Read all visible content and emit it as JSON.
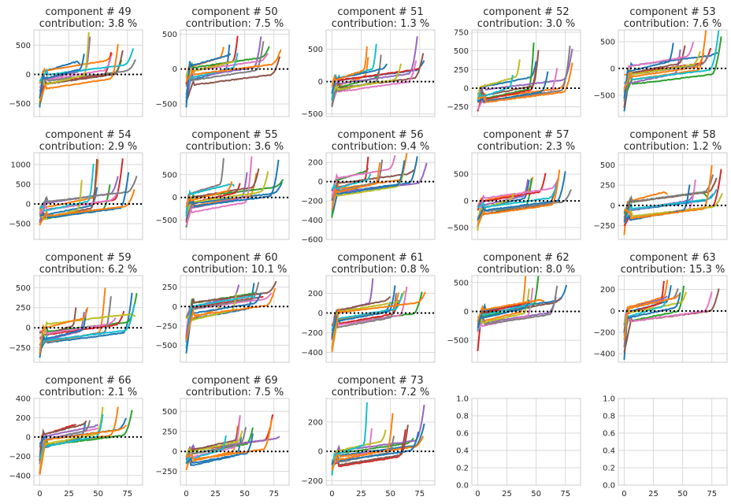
{
  "figure": {
    "background": "#ffffff",
    "grid": true
  },
  "palette": [
    "#1f77b4",
    "#ff7f0e",
    "#2ca02c",
    "#d62728",
    "#9467bd",
    "#8c564b",
    "#e377c2",
    "#7f7f7f",
    "#bcbd22",
    "#17becf"
  ],
  "chart_data": [
    {
      "type": "line",
      "title": "component # 49",
      "subtitle": "contribution: 3.8 %",
      "ylim": [
        -720,
        760
      ],
      "yticks": [
        -500,
        0,
        500
      ],
      "xlim": [
        -5,
        88
      ],
      "xticks": [
        0,
        25,
        50,
        75
      ],
      "series_count": 12,
      "range_min": -650,
      "range_max": 700,
      "reference_line": 0
    },
    {
      "type": "line",
      "title": "component # 50",
      "subtitle": "contribution: 7.5 %",
      "ylim": [
        -680,
        560
      ],
      "yticks": [
        -500,
        0,
        500
      ],
      "xlim": [
        -5,
        88
      ],
      "xticks": [
        0,
        25,
        50,
        75
      ],
      "series_count": 12,
      "range_min": -620,
      "range_max": 540,
      "reference_line": 0
    },
    {
      "type": "line",
      "title": "component # 51",
      "subtitle": "contribution: 1.3 %",
      "ylim": [
        -540,
        800
      ],
      "yticks": [
        -500,
        0,
        500
      ],
      "xlim": [
        -5,
        88
      ],
      "xticks": [
        0,
        25,
        50,
        75
      ],
      "series_count": 12,
      "range_min": -480,
      "range_max": 760,
      "reference_line": 0
    },
    {
      "type": "line",
      "title": "component # 52",
      "subtitle": "contribution: 3.0 %",
      "ylim": [
        -380,
        780
      ],
      "yticks": [
        -250,
        0,
        250,
        500,
        750
      ],
      "xlim": [
        -5,
        88
      ],
      "xticks": [
        0,
        25,
        50,
        75
      ],
      "series_count": 12,
      "range_min": -340,
      "range_max": 730,
      "reference_line": 0
    },
    {
      "type": "line",
      "title": "component # 53",
      "subtitle": "contribution: 7.6 %",
      "ylim": [
        -900,
        720
      ],
      "yticks": [
        -500,
        0,
        500
      ],
      "xlim": [
        -5,
        88
      ],
      "xticks": [
        0,
        25,
        50,
        75
      ],
      "series_count": 12,
      "range_min": -830,
      "range_max": 650,
      "reference_line": 0
    },
    {
      "type": "line",
      "title": "component # 54",
      "subtitle": "contribution: 2.9 %",
      "ylim": [
        -900,
        1300
      ],
      "yticks": [
        -500,
        0,
        500,
        1000
      ],
      "xlim": [
        -5,
        88
      ],
      "xticks": [
        0,
        25,
        50,
        75
      ],
      "series_count": 12,
      "range_min": -830,
      "range_max": 1150,
      "reference_line": 0
    },
    {
      "type": "line",
      "title": "component # 55",
      "subtitle": "contribution: 3.6 %",
      "ylim": [
        -920,
        980
      ],
      "yticks": [
        -500,
        0,
        500
      ],
      "xlim": [
        -5,
        88
      ],
      "xticks": [
        0,
        25,
        50,
        75
      ],
      "series_count": 12,
      "range_min": -870,
      "range_max": 880,
      "reference_line": 0
    },
    {
      "type": "line",
      "title": "component # 56",
      "subtitle": "contribution: 9.4 %",
      "ylim": [
        -600,
        300
      ],
      "yticks": [
        -600,
        -400,
        -200,
        0,
        200
      ],
      "xlim": [
        -5,
        88
      ],
      "xticks": [
        0,
        25,
        50,
        75
      ],
      "series_count": 12,
      "range_min": -470,
      "range_max": 280,
      "reference_line": 0
    },
    {
      "type": "line",
      "title": "component # 57",
      "subtitle": "contribution: 2.3 %",
      "ylim": [
        -720,
        900
      ],
      "yticks": [
        -500,
        0,
        500
      ],
      "xlim": [
        -5,
        88
      ],
      "xticks": [
        0,
        25,
        50,
        75
      ],
      "series_count": 12,
      "range_min": -700,
      "range_max": 720,
      "reference_line": 0
    },
    {
      "type": "line",
      "title": "component # 58",
      "subtitle": "contribution: 1.2 %",
      "ylim": [
        -420,
        650
      ],
      "yticks": [
        -250,
        0,
        250,
        500
      ],
      "xlim": [
        -5,
        88
      ],
      "xticks": [
        0,
        25,
        50,
        75
      ],
      "series_count": 12,
      "range_min": -400,
      "range_max": 560,
      "reference_line": 0
    },
    {
      "type": "line",
      "title": "component # 59",
      "subtitle": "contribution: 6.2 %",
      "ylim": [
        -430,
        650
      ],
      "yticks": [
        -250,
        0,
        250,
        500
      ],
      "xlim": [
        -5,
        88
      ],
      "xticks": [
        0,
        25,
        50,
        75
      ],
      "series_count": 12,
      "range_min": -400,
      "range_max": 570,
      "reference_line": 0
    },
    {
      "type": "line",
      "title": "component # 60",
      "subtitle": "contribution: 10.1 %",
      "ylim": [
        -720,
        400
      ],
      "yticks": [
        -500,
        -250,
        0,
        250
      ],
      "xlim": [
        -5,
        88
      ],
      "xticks": [
        0,
        25,
        50,
        75
      ],
      "series_count": 12,
      "range_min": -680,
      "range_max": 360,
      "reference_line": 0
    },
    {
      "type": "line",
      "title": "component # 61",
      "subtitle": "contribution: 0.8 %",
      "ylim": [
        -500,
        380
      ],
      "yticks": [
        -400,
        -200,
        0,
        200
      ],
      "xlim": [
        -5,
        88
      ],
      "xticks": [
        0,
        25,
        50,
        75
      ],
      "series_count": 12,
      "range_min": -470,
      "range_max": 330,
      "reference_line": 0
    },
    {
      "type": "line",
      "title": "component # 62",
      "subtitle": "contribution: 8.0 %",
      "ylim": [
        -880,
        620
      ],
      "yticks": [
        -500,
        0,
        500
      ],
      "xlim": [
        -5,
        88
      ],
      "xticks": [
        0,
        25,
        50,
        75
      ],
      "series_count": 12,
      "range_min": -800,
      "range_max": 560,
      "reference_line": 0
    },
    {
      "type": "line",
      "title": "component # 63",
      "subtitle": "contribution: 15.3 %",
      "ylim": [
        -480,
        330
      ],
      "yticks": [
        -400,
        -200,
        0,
        200
      ],
      "xlim": [
        -5,
        88
      ],
      "xticks": [
        0,
        25,
        50,
        75
      ],
      "series_count": 12,
      "range_min": -460,
      "range_max": 300,
      "reference_line": 0
    },
    {
      "type": "line",
      "title": "component # 66",
      "subtitle": "contribution: 2.1 %",
      "ylim": [
        -500,
        400
      ],
      "yticks": [
        -400,
        -200,
        0,
        200,
        400
      ],
      "xlim": [
        -5,
        88
      ],
      "xticks": [
        0,
        25,
        50,
        75
      ],
      "series_count": 12,
      "range_min": -470,
      "range_max": 360,
      "reference_line": 0
    },
    {
      "type": "line",
      "title": "component # 69",
      "subtitle": "contribution: 7.5 %",
      "ylim": [
        -420,
        660
      ],
      "yticks": [
        -250,
        0,
        250,
        500
      ],
      "xlim": [
        -5,
        88
      ],
      "xticks": [
        0,
        25,
        50,
        75
      ],
      "series_count": 12,
      "range_min": -380,
      "range_max": 620,
      "reference_line": 0
    },
    {
      "type": "line",
      "title": "component # 73",
      "subtitle": "contribution: 7.2 %",
      "ylim": [
        -230,
        360
      ],
      "yticks": [
        -200,
        0,
        200
      ],
      "xlim": [
        -5,
        88
      ],
      "xticks": [
        0,
        25,
        50,
        75
      ],
      "series_count": 12,
      "range_min": -210,
      "range_max": 330,
      "reference_line": 0
    },
    {
      "type": "line",
      "title": "",
      "subtitle": "",
      "empty": true,
      "ylim": [
        0,
        1
      ],
      "yticks": [
        0.0,
        0.2,
        0.4,
        0.6,
        0.8,
        1.0
      ],
      "xlim": [
        -5,
        88
      ],
      "xticks": [
        0,
        25,
        50,
        75
      ],
      "series_count": 0
    },
    {
      "type": "line",
      "title": "",
      "subtitle": "",
      "empty": true,
      "ylim": [
        0,
        1
      ],
      "yticks": [
        0.0,
        0.2,
        0.4,
        0.6,
        0.8,
        1.0
      ],
      "xlim": [
        -5,
        88
      ],
      "xticks": [
        0,
        25,
        50,
        75
      ],
      "series_count": 0
    }
  ]
}
